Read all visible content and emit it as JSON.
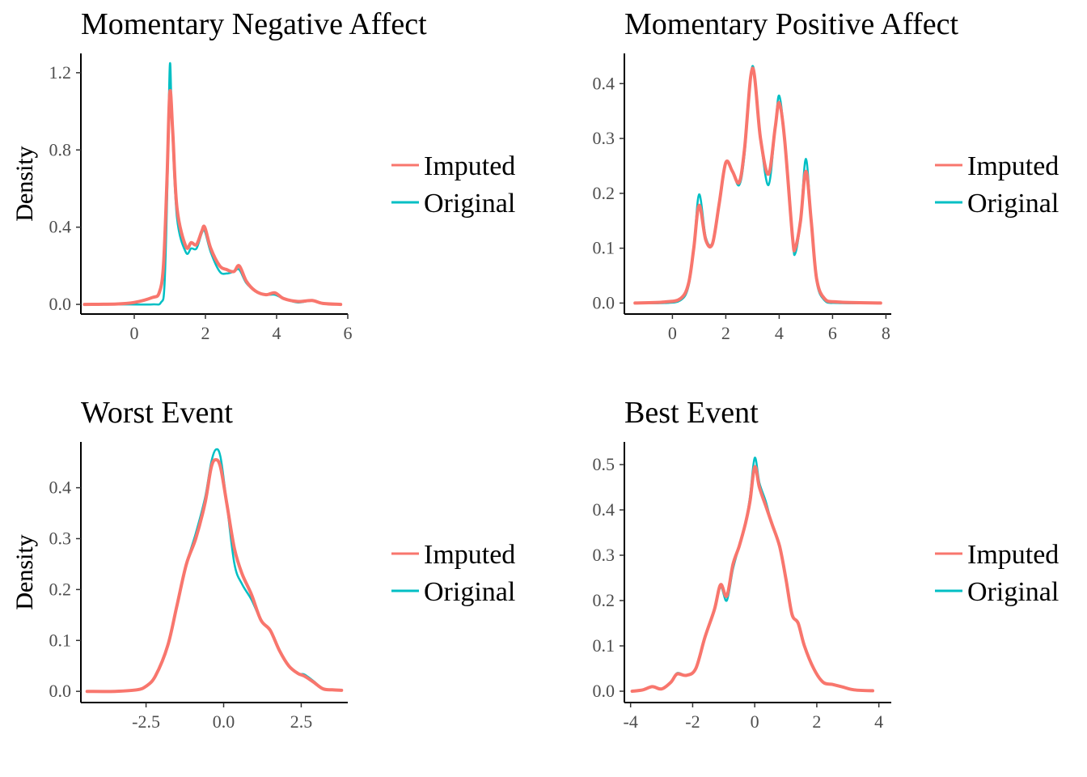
{
  "colors": {
    "imputed": "#F8766D",
    "original": "#00BFC4"
  },
  "legend": [
    {
      "label": "Imputed",
      "color": "#F8766D"
    },
    {
      "label": "Original",
      "color": "#00BFC4"
    }
  ],
  "chart_data": [
    {
      "type": "line",
      "title": "Momentary Negative Affect",
      "xlabel": "",
      "ylabel": "Density",
      "xlim": [
        -1.5,
        6
      ],
      "ylim": [
        -0.05,
        1.3
      ],
      "xticks": [
        0,
        2,
        4,
        6
      ],
      "xtick_labels": [
        "0",
        "2",
        "4",
        "6"
      ],
      "yticks": [
        0,
        0.4,
        0.8,
        1.2
      ],
      "ytick_labels": [
        "0.0",
        "0.4",
        "0.8",
        "1.2"
      ],
      "grid": false,
      "legend_position": "right",
      "series": [
        {
          "name": "Original",
          "color": "#00BFC4",
          "points": [
            [
              -1.4,
              0
            ],
            [
              -0.5,
              0
            ],
            [
              0.5,
              0
            ],
            [
              0.75,
              0.01
            ],
            [
              0.85,
              0.1
            ],
            [
              0.93,
              0.6
            ],
            [
              1.0,
              1.24
            ],
            [
              1.06,
              0.95
            ],
            [
              1.2,
              0.45
            ],
            [
              1.45,
              0.27
            ],
            [
              1.6,
              0.29
            ],
            [
              1.75,
              0.29
            ],
            [
              1.9,
              0.37
            ],
            [
              1.98,
              0.38
            ],
            [
              2.15,
              0.27
            ],
            [
              2.4,
              0.17
            ],
            [
              2.6,
              0.16
            ],
            [
              2.8,
              0.17
            ],
            [
              2.95,
              0.18
            ],
            [
              3.15,
              0.11
            ],
            [
              3.4,
              0.07
            ],
            [
              3.7,
              0.05
            ],
            [
              3.95,
              0.05
            ],
            [
              4.2,
              0.03
            ],
            [
              4.6,
              0.01
            ],
            [
              5.0,
              0.02
            ],
            [
              5.3,
              0.005
            ],
            [
              5.8,
              0
            ]
          ]
        },
        {
          "name": "Imputed",
          "color": "#F8766D",
          "points": [
            [
              -1.4,
              0
            ],
            [
              -0.5,
              0.002
            ],
            [
              0,
              0.01
            ],
            [
              0.5,
              0.035
            ],
            [
              0.7,
              0.06
            ],
            [
              0.82,
              0.2
            ],
            [
              0.92,
              0.65
            ],
            [
              1.0,
              1.1
            ],
            [
              1.08,
              0.9
            ],
            [
              1.2,
              0.5
            ],
            [
              1.45,
              0.3
            ],
            [
              1.6,
              0.32
            ],
            [
              1.75,
              0.31
            ],
            [
              1.9,
              0.38
            ],
            [
              1.98,
              0.4
            ],
            [
              2.15,
              0.29
            ],
            [
              2.4,
              0.2
            ],
            [
              2.6,
              0.18
            ],
            [
              2.8,
              0.17
            ],
            [
              2.95,
              0.2
            ],
            [
              3.15,
              0.12
            ],
            [
              3.4,
              0.07
            ],
            [
              3.7,
              0.05
            ],
            [
              3.95,
              0.06
            ],
            [
              4.2,
              0.03
            ],
            [
              4.6,
              0.015
            ],
            [
              5.0,
              0.02
            ],
            [
              5.3,
              0.005
            ],
            [
              5.8,
              0
            ]
          ]
        }
      ]
    },
    {
      "type": "line",
      "title": "Momentary Positive Affect",
      "xlabel": "",
      "ylabel": "Density",
      "xlim": [
        -1.8,
        8.2
      ],
      "ylim": [
        -0.02,
        0.455
      ],
      "xticks": [
        0,
        2,
        4,
        6,
        8
      ],
      "xtick_labels": [
        "0",
        "2",
        "4",
        "6",
        "8"
      ],
      "yticks": [
        0,
        0.1,
        0.2,
        0.3,
        0.4
      ],
      "ytick_labels": [
        "0.0",
        "0.1",
        "0.2",
        "0.3",
        "0.4"
      ],
      "grid": false,
      "legend_position": "right",
      "series": [
        {
          "name": "Original",
          "color": "#00BFC4",
          "points": [
            [
              -1.4,
              0
            ],
            [
              -0.3,
              0
            ],
            [
              0.3,
              0.005
            ],
            [
              0.6,
              0.03
            ],
            [
              0.8,
              0.1
            ],
            [
              1.0,
              0.198
            ],
            [
              1.25,
              0.12
            ],
            [
              1.5,
              0.11
            ],
            [
              1.75,
              0.18
            ],
            [
              2.0,
              0.255
            ],
            [
              2.25,
              0.24
            ],
            [
              2.5,
              0.215
            ],
            [
              2.7,
              0.27
            ],
            [
              3.0,
              0.432
            ],
            [
              3.3,
              0.3
            ],
            [
              3.6,
              0.215
            ],
            [
              3.85,
              0.32
            ],
            [
              4.0,
              0.378
            ],
            [
              4.2,
              0.3
            ],
            [
              4.5,
              0.12
            ],
            [
              4.6,
              0.09
            ],
            [
              4.8,
              0.15
            ],
            [
              5.0,
              0.263
            ],
            [
              5.2,
              0.15
            ],
            [
              5.4,
              0.04
            ],
            [
              5.7,
              0.005
            ],
            [
              6.2,
              0
            ],
            [
              7.8,
              0
            ]
          ]
        },
        {
          "name": "Imputed",
          "color": "#F8766D",
          "points": [
            [
              -1.4,
              0
            ],
            [
              -0.3,
              0.002
            ],
            [
              0.3,
              0.008
            ],
            [
              0.6,
              0.035
            ],
            [
              0.8,
              0.1
            ],
            [
              1.0,
              0.178
            ],
            [
              1.25,
              0.115
            ],
            [
              1.5,
              0.108
            ],
            [
              1.75,
              0.18
            ],
            [
              2.0,
              0.256
            ],
            [
              2.25,
              0.24
            ],
            [
              2.5,
              0.22
            ],
            [
              2.7,
              0.28
            ],
            [
              3.0,
              0.428
            ],
            [
              3.3,
              0.3
            ],
            [
              3.6,
              0.235
            ],
            [
              3.85,
              0.32
            ],
            [
              4.0,
              0.365
            ],
            [
              4.2,
              0.3
            ],
            [
              4.5,
              0.12
            ],
            [
              4.6,
              0.1
            ],
            [
              4.8,
              0.15
            ],
            [
              5.0,
              0.24
            ],
            [
              5.2,
              0.15
            ],
            [
              5.4,
              0.045
            ],
            [
              5.7,
              0.008
            ],
            [
              6.2,
              0.002
            ],
            [
              7.8,
              0
            ]
          ]
        }
      ]
    },
    {
      "type": "line",
      "title": "Worst Event",
      "xlabel": "",
      "ylabel": "Density",
      "xlim": [
        -4.6,
        4.0
      ],
      "ylim": [
        -0.022,
        0.49
      ],
      "xticks": [
        -2.5,
        0,
        2.5
      ],
      "xtick_labels": [
        "-2.5",
        "0.0",
        "2.5"
      ],
      "yticks": [
        0,
        0.1,
        0.2,
        0.3,
        0.4
      ],
      "ytick_labels": [
        "0.0",
        "0.1",
        "0.2",
        "0.3",
        "0.4"
      ],
      "grid": false,
      "legend_position": "right",
      "series": [
        {
          "name": "Original",
          "color": "#00BFC4",
          "points": [
            [
              -4.4,
              0
            ],
            [
              -3.5,
              0
            ],
            [
              -2.8,
              0.003
            ],
            [
              -2.5,
              0.01
            ],
            [
              -2.2,
              0.03
            ],
            [
              -1.8,
              0.09
            ],
            [
              -1.5,
              0.17
            ],
            [
              -1.2,
              0.25
            ],
            [
              -0.9,
              0.31
            ],
            [
              -0.6,
              0.38
            ],
            [
              -0.4,
              0.45
            ],
            [
              -0.25,
              0.475
            ],
            [
              -0.1,
              0.46
            ],
            [
              0.1,
              0.37
            ],
            [
              0.35,
              0.25
            ],
            [
              0.6,
              0.21
            ],
            [
              0.9,
              0.18
            ],
            [
              1.2,
              0.14
            ],
            [
              1.5,
              0.12
            ],
            [
              1.8,
              0.08
            ],
            [
              2.1,
              0.05
            ],
            [
              2.4,
              0.035
            ],
            [
              2.6,
              0.033
            ],
            [
              2.9,
              0.02
            ],
            [
              3.2,
              0.005
            ],
            [
              3.5,
              0.003
            ],
            [
              3.8,
              0.002
            ]
          ]
        },
        {
          "name": "Imputed",
          "color": "#F8766D",
          "points": [
            [
              -4.4,
              0
            ],
            [
              -3.5,
              0
            ],
            [
              -2.8,
              0.003
            ],
            [
              -2.5,
              0.01
            ],
            [
              -2.2,
              0.03
            ],
            [
              -1.8,
              0.09
            ],
            [
              -1.5,
              0.17
            ],
            [
              -1.2,
              0.25
            ],
            [
              -0.9,
              0.3
            ],
            [
              -0.6,
              0.37
            ],
            [
              -0.4,
              0.44
            ],
            [
              -0.25,
              0.455
            ],
            [
              -0.1,
              0.44
            ],
            [
              0.1,
              0.37
            ],
            [
              0.35,
              0.28
            ],
            [
              0.6,
              0.23
            ],
            [
              0.9,
              0.19
            ],
            [
              1.2,
              0.14
            ],
            [
              1.5,
              0.12
            ],
            [
              1.8,
              0.08
            ],
            [
              2.1,
              0.05
            ],
            [
              2.4,
              0.035
            ],
            [
              2.6,
              0.03
            ],
            [
              2.9,
              0.018
            ],
            [
              3.2,
              0.005
            ],
            [
              3.5,
              0.003
            ],
            [
              3.8,
              0.002
            ]
          ]
        }
      ]
    },
    {
      "type": "line",
      "title": "Best Event",
      "xlabel": "",
      "ylabel": "Density",
      "xlim": [
        -4.2,
        4.4
      ],
      "ylim": [
        -0.025,
        0.55
      ],
      "xticks": [
        -4,
        -2,
        0,
        2,
        4
      ],
      "xtick_labels": [
        "-4",
        "-2",
        "0",
        "2",
        "4"
      ],
      "yticks": [
        0,
        0.1,
        0.2,
        0.3,
        0.4,
        0.5
      ],
      "ytick_labels": [
        "0.0",
        "0.1",
        "0.2",
        "0.3",
        "0.4",
        "0.5"
      ],
      "grid": false,
      "legend_position": "right",
      "series": [
        {
          "name": "Original",
          "color": "#00BFC4",
          "points": [
            [
              -3.95,
              0
            ],
            [
              -3.6,
              0.003
            ],
            [
              -3.3,
              0.01
            ],
            [
              -3.0,
              0.005
            ],
            [
              -2.7,
              0.02
            ],
            [
              -2.5,
              0.04
            ],
            [
              -2.2,
              0.035
            ],
            [
              -1.9,
              0.05
            ],
            [
              -1.6,
              0.12
            ],
            [
              -1.3,
              0.18
            ],
            [
              -1.1,
              0.23
            ],
            [
              -0.9,
              0.2
            ],
            [
              -0.7,
              0.27
            ],
            [
              -0.5,
              0.32
            ],
            [
              -0.3,
              0.37
            ],
            [
              -0.15,
              0.43
            ],
            [
              0.0,
              0.515
            ],
            [
              0.15,
              0.46
            ],
            [
              0.35,
              0.42
            ],
            [
              0.55,
              0.37
            ],
            [
              0.8,
              0.32
            ],
            [
              1.0,
              0.25
            ],
            [
              1.2,
              0.17
            ],
            [
              1.4,
              0.15
            ],
            [
              1.6,
              0.1
            ],
            [
              1.9,
              0.05
            ],
            [
              2.2,
              0.02
            ],
            [
              2.5,
              0.015
            ],
            [
              2.8,
              0.01
            ],
            [
              3.2,
              0.003
            ],
            [
              3.8,
              0.001
            ]
          ]
        },
        {
          "name": "Imputed",
          "color": "#F8766D",
          "points": [
            [
              -3.95,
              0
            ],
            [
              -3.6,
              0.003
            ],
            [
              -3.3,
              0.01
            ],
            [
              -3.0,
              0.005
            ],
            [
              -2.7,
              0.02
            ],
            [
              -2.5,
              0.038
            ],
            [
              -2.2,
              0.035
            ],
            [
              -1.9,
              0.05
            ],
            [
              -1.6,
              0.12
            ],
            [
              -1.3,
              0.18
            ],
            [
              -1.1,
              0.235
            ],
            [
              -0.9,
              0.21
            ],
            [
              -0.7,
              0.28
            ],
            [
              -0.5,
              0.32
            ],
            [
              -0.3,
              0.37
            ],
            [
              -0.15,
              0.42
            ],
            [
              0.0,
              0.495
            ],
            [
              0.15,
              0.45
            ],
            [
              0.35,
              0.41
            ],
            [
              0.55,
              0.37
            ],
            [
              0.8,
              0.32
            ],
            [
              1.0,
              0.25
            ],
            [
              1.2,
              0.17
            ],
            [
              1.4,
              0.15
            ],
            [
              1.6,
              0.1
            ],
            [
              1.9,
              0.05
            ],
            [
              2.2,
              0.02
            ],
            [
              2.5,
              0.015
            ],
            [
              2.8,
              0.01
            ],
            [
              3.2,
              0.003
            ],
            [
              3.8,
              0.001
            ]
          ]
        }
      ]
    }
  ]
}
